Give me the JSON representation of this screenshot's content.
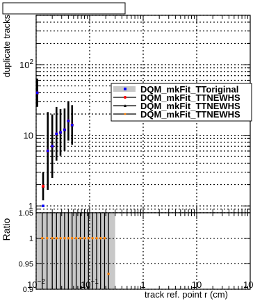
{
  "chart_data": {
    "type": "scatter",
    "title": "",
    "xlabel": "track ref. point r (cm)",
    "ylabel": "duplicate tracks",
    "x_scale": "log",
    "y_scale": "log",
    "xlim": [
      0.01,
      100
    ],
    "ylim": [
      0.8,
      500
    ],
    "grid": true,
    "x_tick_labels": [
      {
        "value": 0.01,
        "base": "10",
        "exp": "−2"
      },
      {
        "value": 0.1,
        "base": "10",
        "exp": "−1"
      },
      {
        "value": 1,
        "base": "1",
        "exp": ""
      },
      {
        "value": 10,
        "base": "10",
        "exp": ""
      },
      {
        "value": 100,
        "base": "10",
        "exp": "2"
      }
    ],
    "y_tick_labels": [
      {
        "value": 1,
        "base": "1",
        "exp": ""
      },
      {
        "value": 10,
        "base": "10",
        "exp": ""
      },
      {
        "value": 100,
        "base": "10",
        "exp": "2"
      }
    ],
    "legend_position": "right",
    "series": [
      {
        "name": "DQM_mkFit_TToriginal",
        "color": "#0000ff",
        "marker": "square-band",
        "x": [
          0.0105,
          0.0135,
          0.0165,
          0.02,
          0.024,
          0.0285,
          0.034,
          0.04,
          0.047
        ],
        "y": [
          40,
          1.0,
          6.0,
          7.0,
          10.5,
          11,
          12,
          16,
          14
        ]
      },
      {
        "name": "DQM_mkFit_TTNEWHS",
        "color": "#ff0000",
        "marker": "circle",
        "x": [
          0.0105,
          0.0135,
          0.0165,
          0.02,
          0.024,
          0.0285,
          0.034,
          0.04,
          0.047
        ],
        "y": [
          40,
          1.9,
          6.0,
          7.0,
          10.5,
          11,
          12,
          16,
          14
        ]
      },
      {
        "name": "DQM_mkFit_TTNEWHS",
        "color": "#000000",
        "marker": "triangle",
        "x": [
          0.0105,
          0.0135,
          0.0165,
          0.02,
          0.024,
          0.0285,
          0.034,
          0.04,
          0.047
        ],
        "y": [
          40,
          1.9,
          6.0,
          7.0,
          10.5,
          11,
          12,
          16,
          14
        ]
      },
      {
        "name": "DQM_mkFit_TTNEWHS",
        "color": "#ff8000",
        "marker": "dot",
        "x": [
          0.0105,
          0.0135,
          0.0165,
          0.02,
          0.024,
          0.0285,
          0.034,
          0.04,
          0.047
        ],
        "y": [
          40,
          1.9,
          6.0,
          7.0,
          10.5,
          11,
          12,
          16,
          14
        ]
      }
    ],
    "ratio_panel": {
      "ylabel": "Ratio",
      "ylim": [
        0.9,
        1.05
      ],
      "y_tick_labels": [
        {
          "value": 0.9,
          "label": "0.9"
        },
        {
          "value": 0.95,
          "label": "0.95"
        },
        {
          "value": 1.0,
          "label": "1"
        },
        {
          "value": 1.05,
          "label": "1.05"
        }
      ],
      "band_x_range": [
        0.01,
        0.3
      ],
      "band_y_range": [
        0.9,
        1.05
      ],
      "points": {
        "x": [
          0.013,
          0.016,
          0.02,
          0.024,
          0.0285,
          0.034,
          0.04,
          0.047,
          0.056,
          0.067,
          0.08,
          0.095,
          0.113,
          0.135,
          0.16,
          0.19,
          0.225
        ],
        "y": [
          1,
          1,
          1,
          1,
          1,
          1,
          1,
          1,
          1,
          1,
          1,
          1,
          1,
          1,
          1,
          1,
          0.93
        ]
      }
    }
  }
}
